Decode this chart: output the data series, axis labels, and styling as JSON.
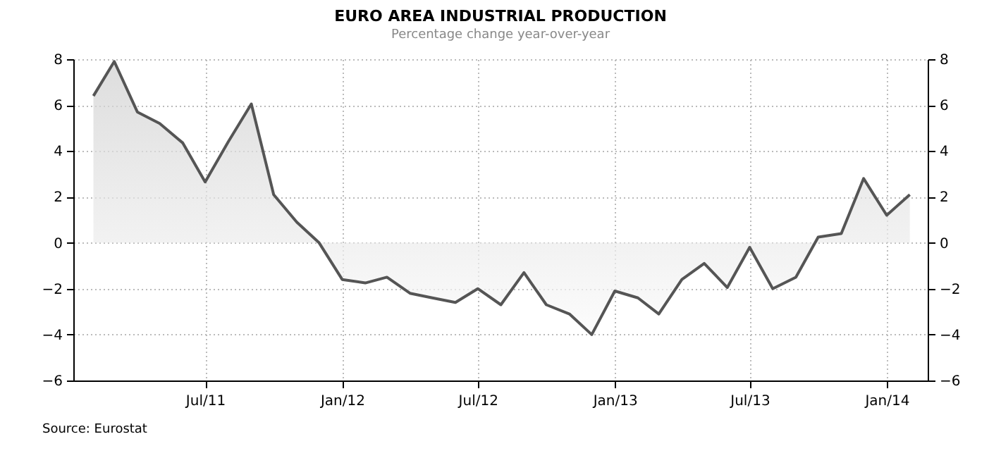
{
  "chart_data": {
    "type": "area",
    "title": "EURO AREA INDUSTRIAL PRODUCTION",
    "subtitle": "Percentage change year-over-year",
    "annotations": [
      "Source: Eurostat"
    ],
    "x": [
      "2011-02",
      "2011-03",
      "2011-04",
      "2011-05",
      "2011-06",
      "2011-07",
      "2011-08",
      "2011-09",
      "2011-10",
      "2011-11",
      "2011-12",
      "2012-01",
      "2012-02",
      "2012-03",
      "2012-04",
      "2012-05",
      "2012-06",
      "2012-07",
      "2012-08",
      "2012-09",
      "2012-10",
      "2012-11",
      "2012-12",
      "2013-01",
      "2013-02",
      "2013-03",
      "2013-04",
      "2013-05",
      "2013-06",
      "2013-07",
      "2013-08",
      "2013-09",
      "2013-10",
      "2013-11",
      "2013-12",
      "2014-01",
      "2014-02"
    ],
    "series": [
      {
        "color": "#555555",
        "values": [
          6.4,
          7.9,
          5.7,
          5.2,
          4.35,
          2.65,
          4.4,
          6.05,
          2.1,
          0.9,
          0.0,
          -1.6,
          -1.75,
          -1.5,
          -2.2,
          -2.4,
          -2.6,
          -2.0,
          -2.7,
          -1.3,
          -2.7,
          -3.1,
          -4.0,
          -2.1,
          -2.4,
          -3.1,
          -1.6,
          -0.9,
          -1.95,
          -0.2,
          -2.0,
          -1.5,
          0.25,
          0.4,
          2.8,
          1.2,
          2.1
        ]
      }
    ],
    "xlim": [
      "2011-01-05",
      "2014-02-25"
    ],
    "xticks": [
      {
        "value": "2011-07",
        "label": "Jul/11"
      },
      {
        "value": "2012-01",
        "label": "Jan/12"
      },
      {
        "value": "2012-07",
        "label": "Jul/12"
      },
      {
        "value": "2013-01",
        "label": "Jan/13"
      },
      {
        "value": "2013-07",
        "label": "Jul/13"
      },
      {
        "value": "2014-01",
        "label": "Jan/14"
      }
    ],
    "ylim": [
      -6,
      8
    ],
    "yticks": [
      -6,
      -4,
      -2,
      0,
      2,
      4,
      6,
      8
    ],
    "y2lim": [
      -6,
      8
    ],
    "y2ticks": [
      -6,
      -4,
      -2,
      0,
      2,
      4,
      6,
      8
    ],
    "grid": true
  }
}
